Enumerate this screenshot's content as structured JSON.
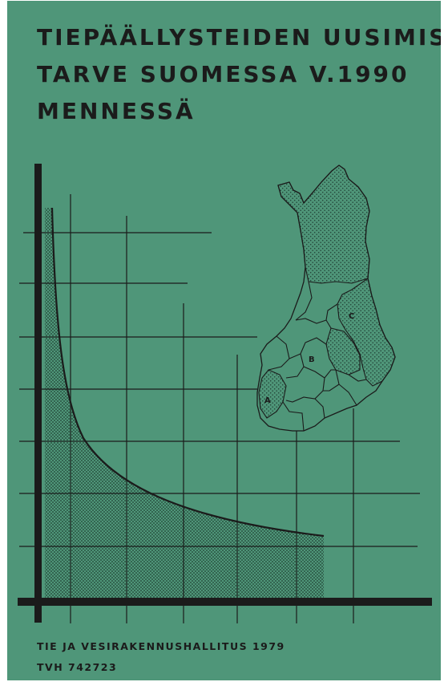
{
  "title": {
    "line1": "TIEPÄÄLLYSTEIDEN UUSIMIS-",
    "line2": "TARVE SUOMESSA V.1990",
    "line3": "MENNESSÄ"
  },
  "map": {
    "region_labels": [
      "A",
      "B",
      "C"
    ]
  },
  "footer": {
    "publisher": "TIE JA VESIRAKENNUSHALLITUS 1979",
    "code": "TVH 742723"
  },
  "colors": {
    "background": "#4f9679",
    "ink": "#1b1b1b"
  }
}
